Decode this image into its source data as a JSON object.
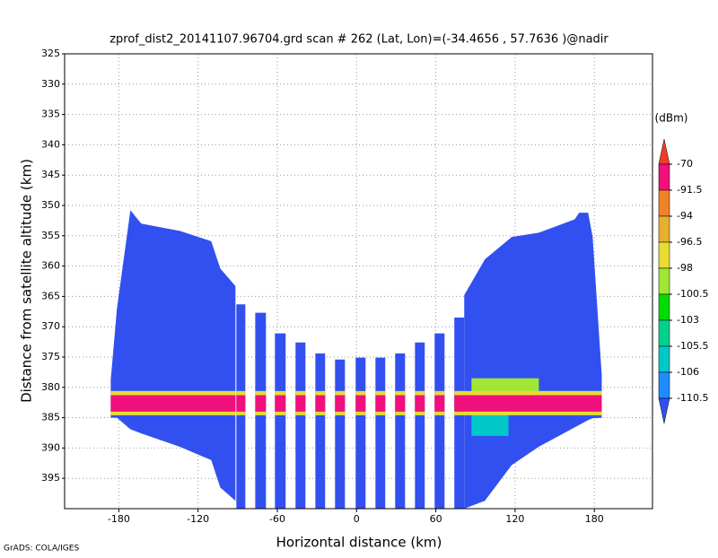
{
  "chart_data": {
    "type": "profile",
    "title": "zprof_dist2_20141107.96704.grd  scan # 262  (Lat, Lon)=(-34.4656 , 57.7636 )@nadir",
    "xlabel": "Horizontal distance (km)",
    "ylabel": "Distance from satellite altitude (km)",
    "credit": "GrADS: COLA/IGES",
    "xlim": [
      -221,
      224
    ],
    "ylim": [
      325,
      400
    ],
    "xticks": [
      -180,
      -120,
      -60,
      0,
      60,
      120,
      180
    ],
    "yticks": [
      325,
      330,
      335,
      340,
      345,
      350,
      355,
      360,
      365,
      370,
      375,
      380,
      385,
      390,
      395
    ],
    "grid": true,
    "colorbar": {
      "unit": "(dBm)",
      "levels": [
        -70,
        -91.5,
        -94,
        -96.5,
        -98,
        -100.5,
        -103,
        -105.5,
        -106,
        -110.5
      ],
      "colors": [
        "#f03c28",
        "#f0107c",
        "#f08228",
        "#e6af2d",
        "#e6dc32",
        "#a0e632",
        "#00dc00",
        "#00d28c",
        "#00c8c8",
        "#1e8cff",
        "#3250f0"
      ]
    },
    "regions": [
      {
        "level": -115,
        "x": [
          -186.1,
          -181.4,
          -171.2,
          -163.0,
          -133.8,
          -110.0,
          -103.2,
          -91.7
        ],
        "top": [
          378.8,
          367.0,
          350.8,
          353.0,
          354.2,
          355.9,
          360.4,
          363.3
        ],
        "bottom": [
          385.0,
          385.0,
          386.9,
          387.6,
          389.8,
          392.0,
          396.5,
          398.7
        ]
      },
      {
        "level": -115,
        "x": [
          -91.0,
          -84.2
        ],
        "top": [
          366.3,
          366.3
        ],
        "bottom": [
          400,
          400
        ]
      },
      {
        "level": -115,
        "x": [
          -76.7,
          -68.6
        ],
        "top": [
          367.7,
          367.7
        ],
        "bottom": [
          400,
          400
        ]
      },
      {
        "level": -115,
        "x": [
          -61.8,
          -53.7
        ],
        "top": [
          371.1,
          371.1
        ],
        "bottom": [
          400,
          400
        ]
      },
      {
        "level": -115,
        "x": [
          -46.2,
          -38.7
        ],
        "top": [
          372.6,
          372.6
        ],
        "bottom": [
          400,
          400
        ]
      },
      {
        "level": -115,
        "x": [
          -31.2,
          -23.8
        ],
        "top": [
          374.4,
          374.4
        ],
        "bottom": [
          400,
          400
        ]
      },
      {
        "level": -115,
        "x": [
          -16.3,
          -8.8
        ],
        "top": [
          375.4,
          375.4
        ],
        "bottom": [
          400,
          400
        ]
      },
      {
        "level": -115,
        "x": [
          -0.7,
          6.8
        ],
        "top": [
          375.1,
          375.1
        ],
        "bottom": [
          400,
          400
        ]
      },
      {
        "level": -115,
        "x": [
          14.3,
          21.7
        ],
        "top": [
          375.1,
          375.1
        ],
        "bottom": [
          400,
          400
        ]
      },
      {
        "level": -115,
        "x": [
          29.2,
          36.7
        ],
        "top": [
          374.4,
          374.4
        ],
        "bottom": [
          400,
          400
        ]
      },
      {
        "level": -115,
        "x": [
          44.2,
          51.6
        ],
        "top": [
          372.6,
          372.6
        ],
        "bottom": [
          400,
          400
        ]
      },
      {
        "level": -115,
        "x": [
          59.1,
          66.6
        ],
        "top": [
          371.1,
          371.1
        ],
        "bottom": [
          400,
          400
        ]
      },
      {
        "level": -115,
        "x": [
          74.0,
          81.5
        ],
        "top": [
          368.5,
          368.5
        ],
        "bottom": [
          400,
          400
        ]
      },
      {
        "level": -115,
        "x": [
          81.5,
          97.1,
          117.5,
          137.9,
          165.1,
          168.5,
          175.3,
          178.7,
          185.6
        ],
        "top": [
          364.8,
          358.9,
          355.2,
          354.5,
          352.3,
          351.2,
          351.2,
          355.2,
          378.0
        ],
        "bottom": [
          400,
          398.7,
          392.8,
          389.8,
          386.6,
          386.2,
          385.4,
          385.1,
          385.0
        ]
      }
    ],
    "layers": [
      {
        "level": -100,
        "x0": 87,
        "x1": 138,
        "top": 378.5,
        "bottom": 381
      },
      {
        "level": -105.8,
        "x0": 87,
        "x1": 115,
        "top": 384.5,
        "bottom": 388
      },
      {
        "level": -97,
        "x0": -190,
        "x1": 190,
        "top": 380.6,
        "bottom": 381.3
      },
      {
        "level": -80,
        "x0": -190,
        "x1": 190,
        "top": 381.3,
        "bottom": 384
      },
      {
        "level": -97,
        "x0": -190,
        "x1": 190,
        "top": 384,
        "bottom": 384.6
      }
    ]
  }
}
